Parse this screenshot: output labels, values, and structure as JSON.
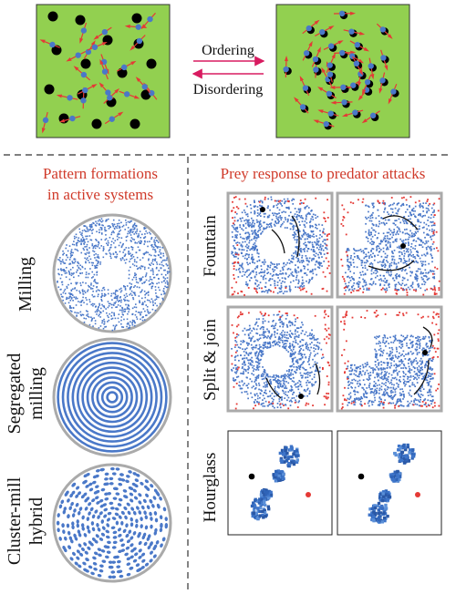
{
  "top": {
    "arrow_forward_label": "Ordering",
    "arrow_backward_label": "Disordering"
  },
  "left_panel": {
    "heading_line1": "Pattern formations",
    "heading_line2": "in active systems",
    "patterns": [
      {
        "label_lines": [
          "Milling"
        ]
      },
      {
        "label_lines": [
          "Segregated",
          "milling"
        ]
      },
      {
        "label_lines": [
          "Cluster-mill",
          "hybrid"
        ]
      }
    ]
  },
  "right_panel": {
    "heading": "Prey response to predator attacks",
    "rows": [
      {
        "label": "Fountain"
      },
      {
        "label": "Split & join"
      },
      {
        "label": "Hourglass"
      }
    ]
  },
  "colors": {
    "box_fill": "#92d050",
    "prey_blue": "#4a78c8",
    "predator_red": "#e53935",
    "arrow_pink": "#d81b60",
    "heading_red": "#d03a2a"
  }
}
